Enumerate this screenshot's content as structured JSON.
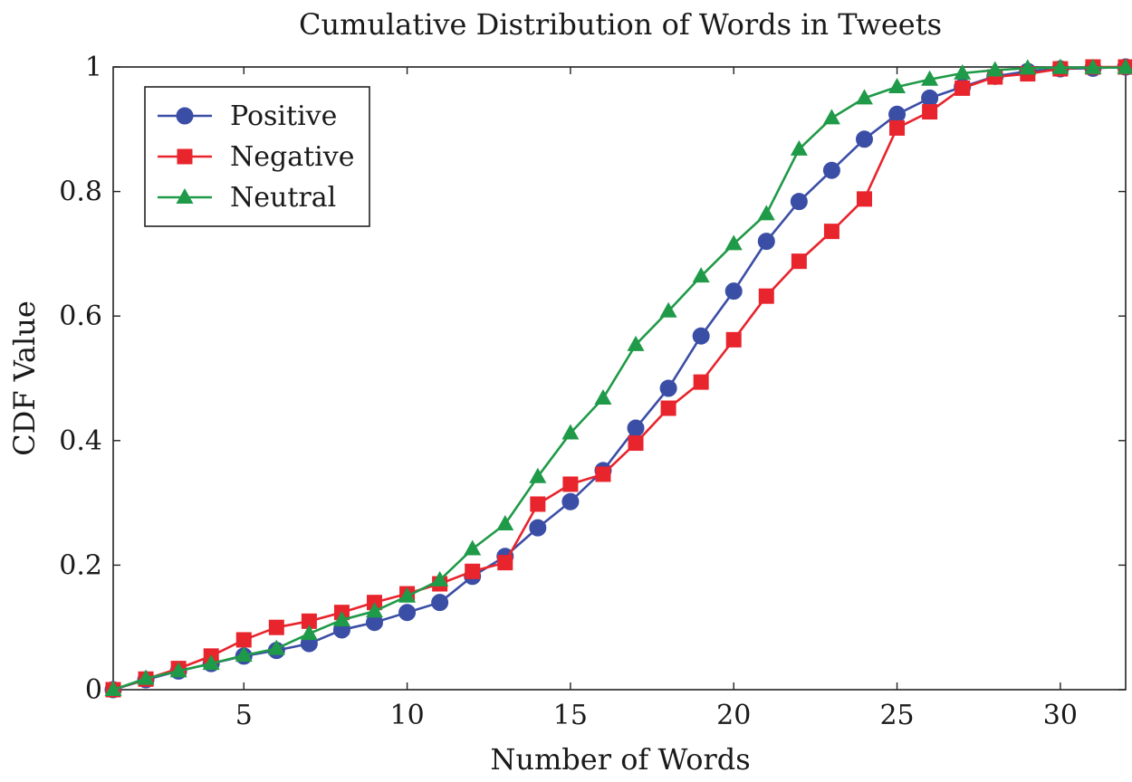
{
  "chart_data": {
    "type": "line",
    "title": "Cumulative Distribution of Words in Tweets",
    "xlabel": "Number of Words",
    "ylabel": "CDF Value",
    "xlim": [
      1,
      32
    ],
    "ylim": [
      0,
      1
    ],
    "xticks": [
      5,
      10,
      15,
      20,
      25,
      30
    ],
    "yticks": [
      0,
      0.2,
      0.4,
      0.6,
      0.8,
      1
    ],
    "ytick_labels": [
      "0",
      "0.2",
      "0.4",
      "0.6",
      "0.8",
      "1"
    ],
    "grid": false,
    "legend_position": "top-left",
    "x": [
      1,
      2,
      3,
      4,
      5,
      6,
      7,
      8,
      9,
      10,
      11,
      12,
      13,
      14,
      15,
      16,
      17,
      18,
      19,
      20,
      21,
      22,
      23,
      24,
      25,
      26,
      27,
      28,
      29,
      30,
      31,
      32
    ],
    "series": [
      {
        "name": "Positive",
        "marker": "circle",
        "color": "#3b4ea6",
        "values": [
          0.0,
          0.016,
          0.03,
          0.042,
          0.054,
          0.063,
          0.074,
          0.096,
          0.108,
          0.124,
          0.14,
          0.182,
          0.214,
          0.26,
          0.302,
          0.352,
          0.42,
          0.484,
          0.568,
          0.64,
          0.72,
          0.784,
          0.834,
          0.884,
          0.924,
          0.95,
          0.968,
          0.985,
          0.993,
          0.997,
          0.998,
          1.0
        ]
      },
      {
        "name": "Negative",
        "marker": "square",
        "color": "#e8242d",
        "values": [
          0.0,
          0.017,
          0.034,
          0.054,
          0.08,
          0.1,
          0.11,
          0.124,
          0.14,
          0.154,
          0.17,
          0.19,
          0.204,
          0.298,
          0.33,
          0.346,
          0.396,
          0.452,
          0.494,
          0.562,
          0.632,
          0.688,
          0.736,
          0.788,
          0.902,
          0.928,
          0.966,
          0.984,
          0.989,
          0.997,
          1.0,
          1.0
        ]
      },
      {
        "name": "Neutral",
        "marker": "triangle",
        "color": "#1f9a48",
        "values": [
          0.0,
          0.018,
          0.03,
          0.042,
          0.055,
          0.066,
          0.09,
          0.112,
          0.126,
          0.15,
          0.176,
          0.226,
          0.266,
          0.342,
          0.412,
          0.468,
          0.554,
          0.608,
          0.664,
          0.716,
          0.764,
          0.868,
          0.918,
          0.95,
          0.968,
          0.98,
          0.99,
          0.995,
          0.998,
          0.999,
          0.999,
          0.999
        ]
      }
    ]
  }
}
